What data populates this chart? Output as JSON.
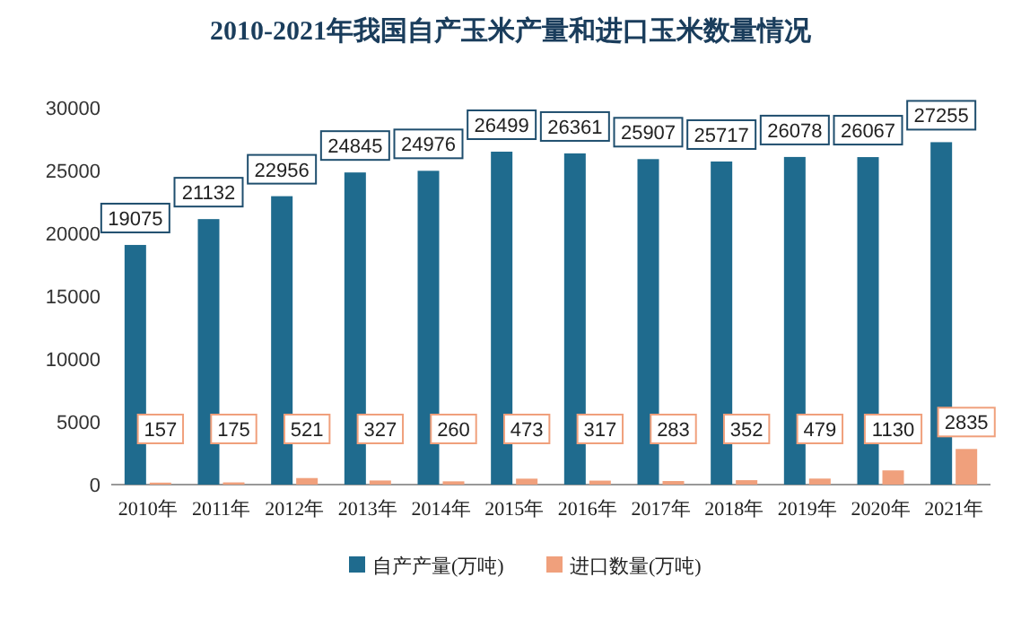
{
  "chart_data": {
    "type": "bar",
    "title": "2010-2021年我国自产玉米产量和进口玉米数量情况",
    "categories": [
      "2010年",
      "2011年",
      "2012年",
      "2013年",
      "2014年",
      "2015年",
      "2016年",
      "2017年",
      "2018年",
      "2019年",
      "2020年",
      "2021年"
    ],
    "series": [
      {
        "name": "自产产量(万吨)",
        "color": "#1f6b8e",
        "values": [
          19075,
          21132,
          22956,
          24845,
          24976,
          26499,
          26361,
          25907,
          25717,
          26078,
          26067,
          27255
        ]
      },
      {
        "name": "进口数量(万吨)",
        "color": "#f0a07c",
        "values": [
          157,
          175,
          521,
          327,
          260,
          473,
          317,
          283,
          352,
          479,
          1130,
          2835
        ]
      }
    ],
    "ylim": [
      0,
      30000
    ],
    "yticks": [
      0,
      5000,
      10000,
      15000,
      20000,
      25000,
      30000
    ],
    "data_labels": true,
    "legend": "bottom",
    "grid": false
  }
}
